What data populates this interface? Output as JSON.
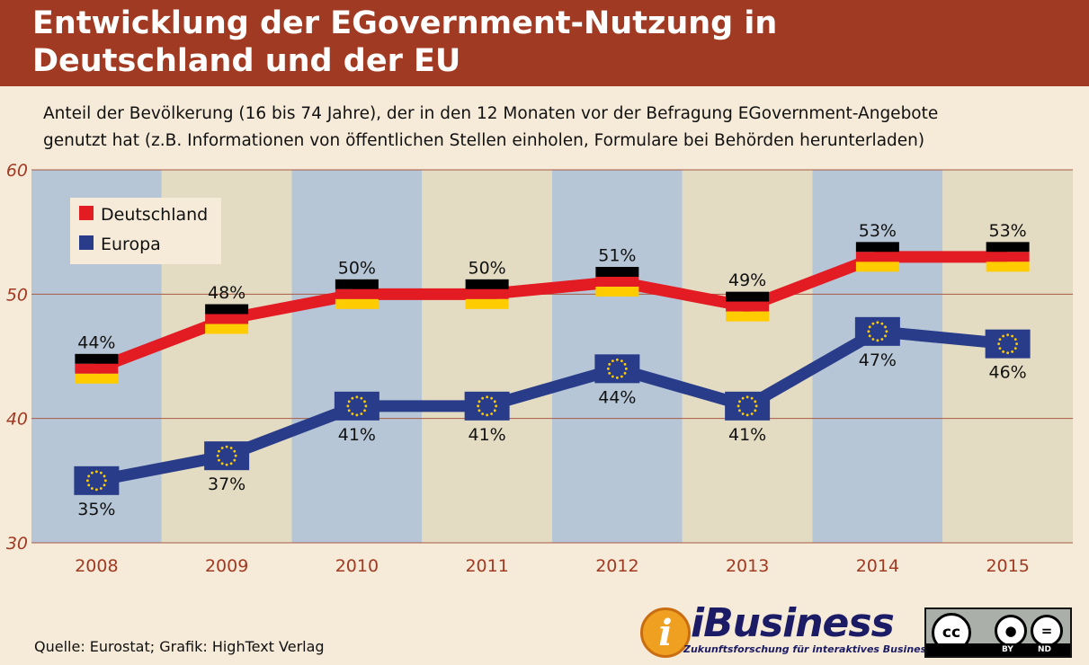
{
  "title": {
    "line1": "Entwicklung der EGovernment-Nutzung in",
    "line2": "Deutschland und der EU"
  },
  "subtitle": {
    "line1": "Anteil der Bevölkerung (16 bis 74 Jahre), der in den 12 Monaten vor der Befragung EGovernment-Angebote",
    "line2": "genutzt hat (z.B. Informationen von öffentlichen Stellen einholen, Formulare bei Behörden herunterladen)"
  },
  "chart_data": {
    "type": "line",
    "x": [
      "2008",
      "2009",
      "2010",
      "2011",
      "2012",
      "2013",
      "2014",
      "2015"
    ],
    "ylim": [
      30,
      60
    ],
    "yticks": [
      "30",
      "40",
      "50",
      "60"
    ],
    "grid": "horizontal",
    "legend_position": "top-left",
    "series": [
      {
        "name": "Deutschland",
        "color": "#e31b23",
        "values": [
          44,
          48,
          50,
          50,
          51,
          49,
          53,
          53
        ],
        "labels": [
          "44%",
          "48%",
          "50%",
          "50%",
          "51%",
          "49%",
          "53%",
          "53%"
        ]
      },
      {
        "name": "Europa",
        "color": "#283c8a",
        "values": [
          35,
          37,
          41,
          41,
          44,
          41,
          47,
          46
        ],
        "labels": [
          "35%",
          "37%",
          "41%",
          "41%",
          "44%",
          "41%",
          "47%",
          "46%"
        ]
      }
    ],
    "band_colors": [
      "#b6c6d6",
      "#e4dcc2"
    ]
  },
  "footer": {
    "source": "Quelle: Eurostat; Grafik: HighText Verlag",
    "logo_letter": "i",
    "logo_brand": "iBusiness",
    "logo_tagline": "Zukunftsforschung für interaktives Business",
    "cc_badge": "cc",
    "cc_by": "BY",
    "cc_nd": "ND"
  }
}
